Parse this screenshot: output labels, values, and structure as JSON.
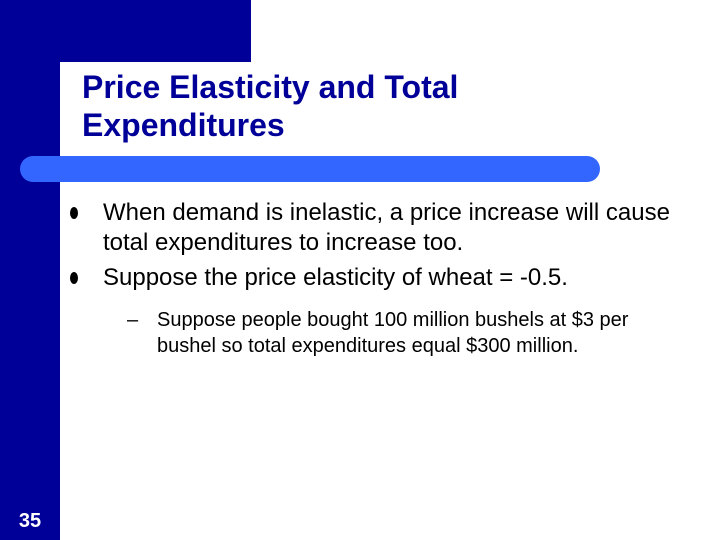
{
  "slide": {
    "title": "Price Elasticity and Total Expenditures",
    "bullets": [
      {
        "text": "When demand is inelastic, a price increase will cause total expenditures to increase too."
      },
      {
        "text": "Suppose the price elasticity of wheat = -0.5."
      }
    ],
    "sub_bullet": {
      "marker": "–",
      "text": "Suppose people bought 100 million bushels at $3 per bushel so total expenditures equal $300 million."
    },
    "slide_number": "35"
  },
  "colors": {
    "brand_blue": "#000099",
    "accent_blue": "#3366ff",
    "background": "#ffffff",
    "text": "#000000"
  }
}
